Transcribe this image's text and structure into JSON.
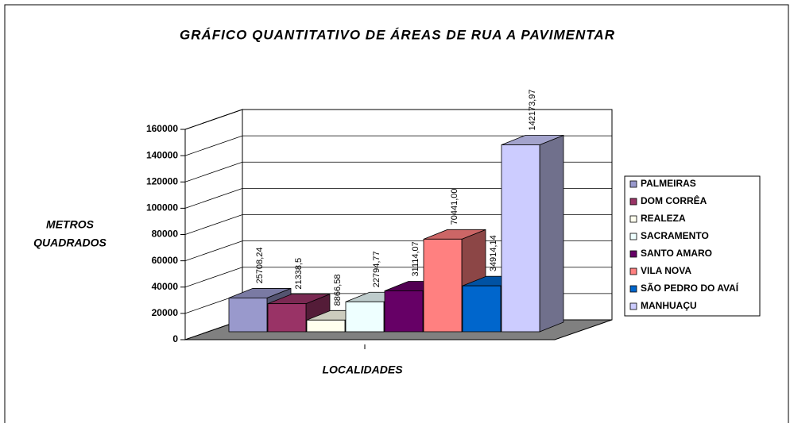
{
  "chart_data": {
    "type": "bar3d",
    "title": "GRÁFICO QUANTITATIVO DE ÁREAS DE RUA A PAVIMENTAR",
    "y_label": [
      "METROS",
      "QUADRADOS"
    ],
    "x_label": "LOCALIDADES",
    "ylim": [
      0,
      160000
    ],
    "yticks": [
      0,
      20000,
      40000,
      60000,
      80000,
      100000,
      120000,
      140000,
      160000
    ],
    "grid": true,
    "legend": "right",
    "series": [
      {
        "name": "PALMEIRAS",
        "color": "#9999cc",
        "values": [
          25708.24
        ],
        "value_labels": [
          "25708,24"
        ]
      },
      {
        "name": "DOM CORRÊA",
        "color": "#993366",
        "values": [
          21338.5
        ],
        "value_labels": [
          "21338,5"
        ]
      },
      {
        "name": "REALEZA",
        "color": "#ffffee",
        "values": [
          8866.58
        ],
        "value_labels": [
          "8866,58"
        ]
      },
      {
        "name": "SACRAMENTO",
        "color": "#eeffff",
        "values": [
          22794.77
        ],
        "value_labels": [
          "22794,77"
        ]
      },
      {
        "name": "SANTO AMARO",
        "color": "#660066",
        "values": [
          31114.07
        ],
        "value_labels": [
          "31114,07"
        ]
      },
      {
        "name": "VILA NOVA",
        "color": "#ff8080",
        "values": [
          70441
        ],
        "value_labels": [
          "70441,00"
        ]
      },
      {
        "name": "SÃO PEDRO DO AVAÍ",
        "color": "#0066cc",
        "values": [
          34914.14
        ],
        "value_labels": [
          "34914,14"
        ]
      },
      {
        "name": "MANHUAÇU",
        "color": "#ccccff",
        "values": [
          142173.97
        ],
        "value_labels": [
          "142173,97"
        ]
      }
    ]
  }
}
